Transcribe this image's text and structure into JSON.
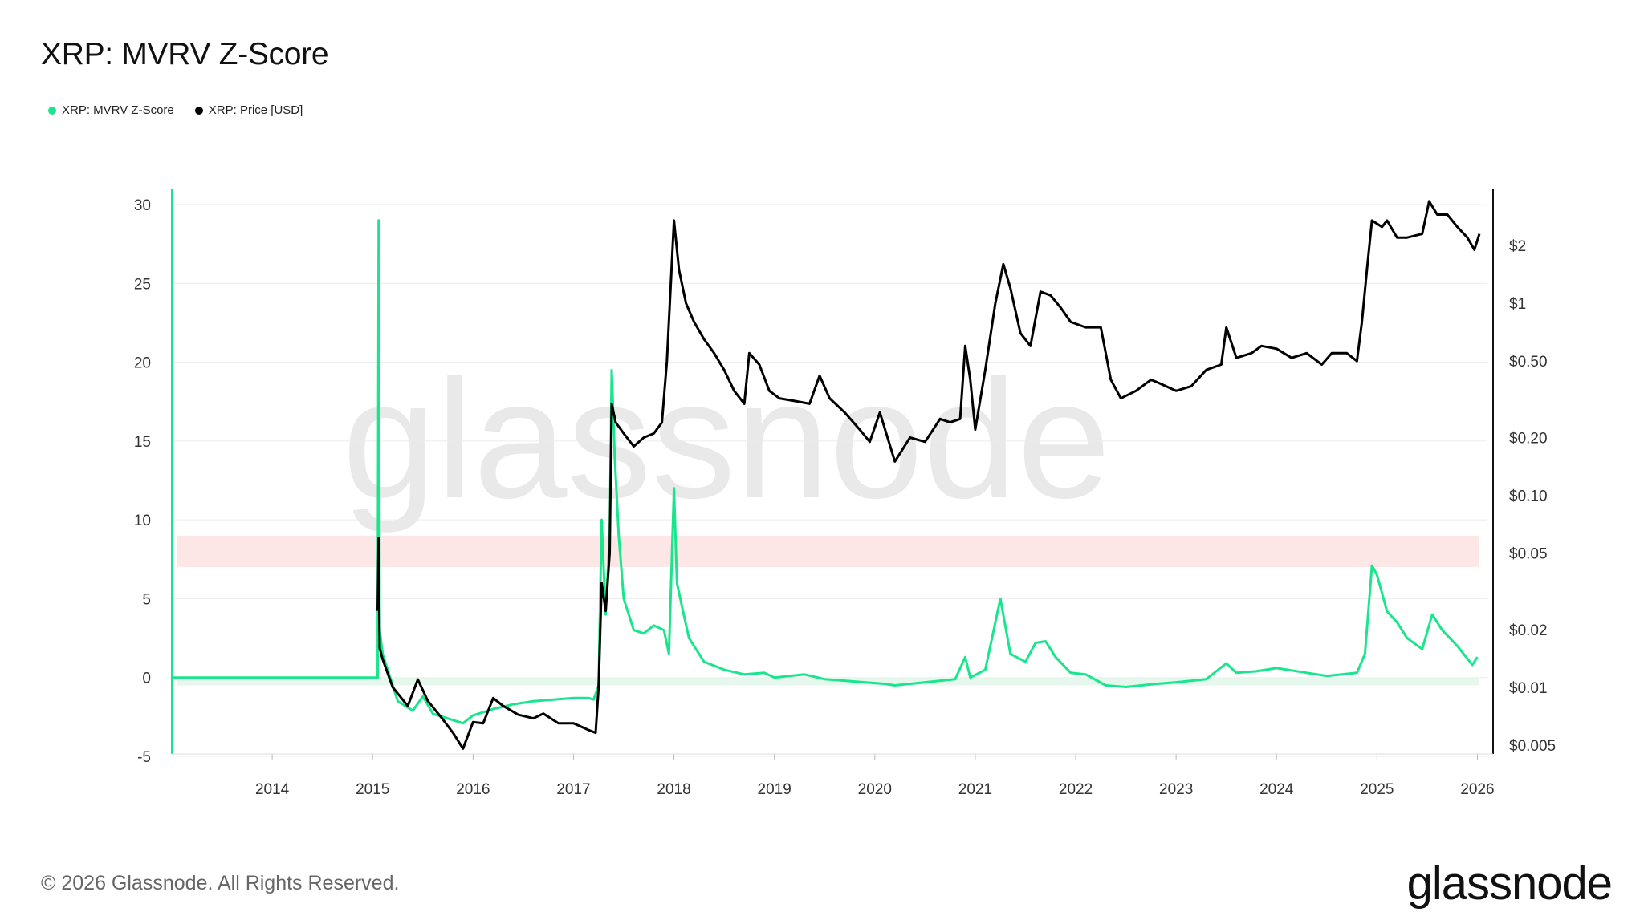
{
  "title": "XRP: MVRV Z-Score",
  "legend": [
    {
      "label": "XRP: MVRV Z-Score",
      "color": "#19e68c"
    },
    {
      "label": "XRP: Price [USD]",
      "color": "#000000"
    }
  ],
  "watermark": "glassnode",
  "footer": "© 2026 Glassnode. All Rights Reserved.",
  "brand": "glassnode",
  "chart_data": {
    "type": "line",
    "xlabel": "",
    "ylabel": "",
    "x_ticks": [
      "2014",
      "2015",
      "2016",
      "2017",
      "2018",
      "2019",
      "2020",
      "2021",
      "2022",
      "2023",
      "2024",
      "2025",
      "2026"
    ],
    "x_range": [
      2013.0,
      2026.1
    ],
    "y_left": {
      "ticks": [
        30,
        25,
        20,
        15,
        10,
        5,
        0,
        -5
      ],
      "range": [
        -5,
        31
      ]
    },
    "y_right": {
      "scale": "log",
      "range": [
        0.0045,
        3.6
      ],
      "ticks": [
        {
          "v": 2,
          "label": "$2"
        },
        {
          "v": 1,
          "label": "$1"
        },
        {
          "v": 0.5,
          "label": "$0.50"
        },
        {
          "v": 0.2,
          "label": "$0.20"
        },
        {
          "v": 0.1,
          "label": "$0.10"
        },
        {
          "v": 0.05,
          "label": "$0.05"
        },
        {
          "v": 0.02,
          "label": "$0.02"
        },
        {
          "v": 0.01,
          "label": "$0.01"
        },
        {
          "v": 0.005,
          "label": "$0.005"
        }
      ]
    },
    "bands": [
      {
        "name": "overvalued-zone",
        "from": 7,
        "to": 9,
        "color": "#fde6e6"
      },
      {
        "name": "undervalued-zone",
        "from": -0.5,
        "to": 0,
        "color": "#e6f7ee"
      }
    ],
    "grid": true,
    "series": [
      {
        "name": "XRP: MVRV Z-Score",
        "axis": "left",
        "color": "#19e68c",
        "points": [
          [
            2013.0,
            0
          ],
          [
            2015.05,
            0
          ],
          [
            2015.06,
            29
          ],
          [
            2015.07,
            3
          ],
          [
            2015.1,
            1.5
          ],
          [
            2015.15,
            0.5
          ],
          [
            2015.25,
            -1.5
          ],
          [
            2015.4,
            -2.1
          ],
          [
            2015.5,
            -1.2
          ],
          [
            2015.6,
            -2.3
          ],
          [
            2015.75,
            -2.6
          ],
          [
            2015.9,
            -2.9
          ],
          [
            2016.0,
            -2.4
          ],
          [
            2016.2,
            -2.0
          ],
          [
            2016.4,
            -1.7
          ],
          [
            2016.6,
            -1.5
          ],
          [
            2016.8,
            -1.4
          ],
          [
            2017.0,
            -1.3
          ],
          [
            2017.15,
            -1.3
          ],
          [
            2017.2,
            -1.4
          ],
          [
            2017.25,
            -0.5
          ],
          [
            2017.28,
            10
          ],
          [
            2017.32,
            4
          ],
          [
            2017.36,
            9
          ],
          [
            2017.38,
            19.5
          ],
          [
            2017.41,
            14
          ],
          [
            2017.45,
            9
          ],
          [
            2017.5,
            5
          ],
          [
            2017.6,
            3
          ],
          [
            2017.7,
            2.8
          ],
          [
            2017.8,
            3.3
          ],
          [
            2017.9,
            3
          ],
          [
            2017.95,
            1.5
          ],
          [
            2018.0,
            12
          ],
          [
            2018.03,
            6
          ],
          [
            2018.08,
            4.5
          ],
          [
            2018.15,
            2.5
          ],
          [
            2018.3,
            1
          ],
          [
            2018.5,
            0.5
          ],
          [
            2018.7,
            0.2
          ],
          [
            2018.9,
            0.3
          ],
          [
            2019.0,
            0
          ],
          [
            2019.3,
            0.2
          ],
          [
            2019.5,
            -0.1
          ],
          [
            2019.7,
            -0.2
          ],
          [
            2019.9,
            -0.3
          ],
          [
            2020.1,
            -0.4
          ],
          [
            2020.2,
            -0.5
          ],
          [
            2020.5,
            -0.3
          ],
          [
            2020.8,
            -0.1
          ],
          [
            2020.9,
            1.3
          ],
          [
            2020.95,
            0
          ],
          [
            2021.1,
            0.5
          ],
          [
            2021.25,
            5
          ],
          [
            2021.35,
            1.5
          ],
          [
            2021.5,
            1
          ],
          [
            2021.6,
            2.2
          ],
          [
            2021.7,
            2.3
          ],
          [
            2021.8,
            1.3
          ],
          [
            2021.95,
            0.3
          ],
          [
            2022.1,
            0.2
          ],
          [
            2022.3,
            -0.5
          ],
          [
            2022.5,
            -0.6
          ],
          [
            2022.8,
            -0.4
          ],
          [
            2023.0,
            -0.3
          ],
          [
            2023.3,
            -0.1
          ],
          [
            2023.5,
            0.9
          ],
          [
            2023.6,
            0.3
          ],
          [
            2023.8,
            0.4
          ],
          [
            2024.0,
            0.6
          ],
          [
            2024.3,
            0.3
          ],
          [
            2024.5,
            0.1
          ],
          [
            2024.8,
            0.3
          ],
          [
            2024.88,
            1.5
          ],
          [
            2024.95,
            7.1
          ],
          [
            2025.0,
            6.5
          ],
          [
            2025.1,
            4.2
          ],
          [
            2025.2,
            3.5
          ],
          [
            2025.3,
            2.5
          ],
          [
            2025.45,
            1.8
          ],
          [
            2025.55,
            4
          ],
          [
            2025.65,
            3
          ],
          [
            2025.8,
            2
          ],
          [
            2025.95,
            0.8
          ],
          [
            2026.0,
            1.3
          ]
        ]
      },
      {
        "name": "XRP: Price [USD]",
        "axis": "right",
        "color": "#000000",
        "points": [
          [
            2015.05,
            0.025
          ],
          [
            2015.06,
            0.06
          ],
          [
            2015.07,
            0.016
          ],
          [
            2015.1,
            0.014
          ],
          [
            2015.2,
            0.01
          ],
          [
            2015.35,
            0.008
          ],
          [
            2015.45,
            0.011
          ],
          [
            2015.55,
            0.0085
          ],
          [
            2015.7,
            0.0068
          ],
          [
            2015.8,
            0.0058
          ],
          [
            2015.9,
            0.0048
          ],
          [
            2016.0,
            0.0066
          ],
          [
            2016.1,
            0.0065
          ],
          [
            2016.2,
            0.0088
          ],
          [
            2016.3,
            0.008
          ],
          [
            2016.45,
            0.0072
          ],
          [
            2016.6,
            0.0069
          ],
          [
            2016.7,
            0.0073
          ],
          [
            2016.85,
            0.0065
          ],
          [
            2017.0,
            0.0065
          ],
          [
            2017.15,
            0.006
          ],
          [
            2017.22,
            0.0058
          ],
          [
            2017.25,
            0.01
          ],
          [
            2017.28,
            0.035
          ],
          [
            2017.32,
            0.025
          ],
          [
            2017.36,
            0.05
          ],
          [
            2017.38,
            0.3
          ],
          [
            2017.42,
            0.24
          ],
          [
            2017.5,
            0.21
          ],
          [
            2017.6,
            0.18
          ],
          [
            2017.7,
            0.2
          ],
          [
            2017.8,
            0.21
          ],
          [
            2017.88,
            0.24
          ],
          [
            2017.93,
            0.5
          ],
          [
            2018.0,
            2.7
          ],
          [
            2018.05,
            1.5
          ],
          [
            2018.12,
            1.0
          ],
          [
            2018.2,
            0.8
          ],
          [
            2018.3,
            0.65
          ],
          [
            2018.4,
            0.55
          ],
          [
            2018.5,
            0.45
          ],
          [
            2018.6,
            0.35
          ],
          [
            2018.7,
            0.3
          ],
          [
            2018.75,
            0.55
          ],
          [
            2018.85,
            0.48
          ],
          [
            2018.95,
            0.35
          ],
          [
            2019.05,
            0.32
          ],
          [
            2019.2,
            0.31
          ],
          [
            2019.35,
            0.3
          ],
          [
            2019.45,
            0.42
          ],
          [
            2019.55,
            0.32
          ],
          [
            2019.7,
            0.27
          ],
          [
            2019.85,
            0.22
          ],
          [
            2019.95,
            0.19
          ],
          [
            2020.05,
            0.27
          ],
          [
            2020.2,
            0.15
          ],
          [
            2020.35,
            0.2
          ],
          [
            2020.5,
            0.19
          ],
          [
            2020.65,
            0.25
          ],
          [
            2020.75,
            0.24
          ],
          [
            2020.85,
            0.25
          ],
          [
            2020.9,
            0.6
          ],
          [
            2020.95,
            0.4
          ],
          [
            2021.0,
            0.22
          ],
          [
            2021.1,
            0.45
          ],
          [
            2021.2,
            1.0
          ],
          [
            2021.28,
            1.6
          ],
          [
            2021.35,
            1.2
          ],
          [
            2021.45,
            0.7
          ],
          [
            2021.55,
            0.6
          ],
          [
            2021.65,
            1.15
          ],
          [
            2021.75,
            1.1
          ],
          [
            2021.85,
            0.95
          ],
          [
            2021.95,
            0.8
          ],
          [
            2022.1,
            0.75
          ],
          [
            2022.25,
            0.75
          ],
          [
            2022.35,
            0.4
          ],
          [
            2022.45,
            0.32
          ],
          [
            2022.6,
            0.35
          ],
          [
            2022.75,
            0.4
          ],
          [
            2022.85,
            0.38
          ],
          [
            2023.0,
            0.35
          ],
          [
            2023.15,
            0.37
          ],
          [
            2023.3,
            0.45
          ],
          [
            2023.45,
            0.48
          ],
          [
            2023.5,
            0.75
          ],
          [
            2023.6,
            0.52
          ],
          [
            2023.75,
            0.55
          ],
          [
            2023.85,
            0.6
          ],
          [
            2024.0,
            0.58
          ],
          [
            2024.15,
            0.52
          ],
          [
            2024.3,
            0.55
          ],
          [
            2024.45,
            0.48
          ],
          [
            2024.55,
            0.55
          ],
          [
            2024.7,
            0.55
          ],
          [
            2024.8,
            0.5
          ],
          [
            2024.85,
            0.8
          ],
          [
            2024.9,
            1.5
          ],
          [
            2024.95,
            2.7
          ],
          [
            2025.05,
            2.5
          ],
          [
            2025.1,
            2.7
          ],
          [
            2025.2,
            2.2
          ],
          [
            2025.3,
            2.2
          ],
          [
            2025.45,
            2.3
          ],
          [
            2025.52,
            3.4
          ],
          [
            2025.6,
            2.9
          ],
          [
            2025.7,
            2.9
          ],
          [
            2025.8,
            2.5
          ],
          [
            2025.9,
            2.2
          ],
          [
            2025.97,
            1.9
          ],
          [
            2026.02,
            2.3
          ]
        ]
      }
    ]
  }
}
